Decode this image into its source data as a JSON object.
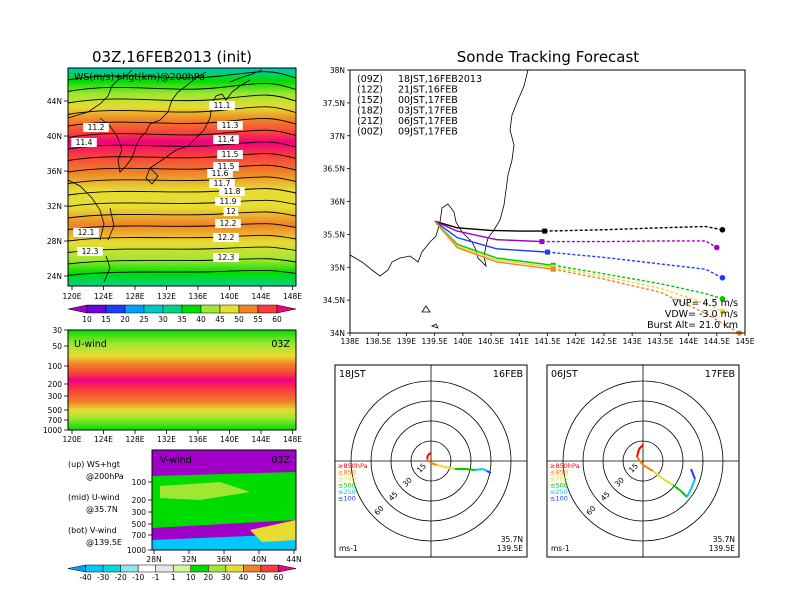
{
  "left_panel": {
    "title": "03Z,16FEB2013 (init)",
    "map_label": "WS(m/s)+hgt(km)@200hPa",
    "x_ticks": [
      "120E",
      "124E",
      "128E",
      "132E",
      "136E",
      "140E",
      "144E",
      "148E"
    ],
    "y_ticks": [
      "44N",
      "40N",
      "36N",
      "32N",
      "28N",
      "24N"
    ],
    "contour_labels": [
      "11.1",
      "11.2",
      "11.3",
      "11.4",
      "11.4",
      "11.5",
      "11.5",
      "11.6",
      "11.7",
      "11.8",
      "11.9",
      "12",
      "12.1",
      "12.2",
      "12.2",
      "12.3",
      "12.3"
    ],
    "ws_colorbar": [
      "10",
      "15",
      "20",
      "25",
      "30",
      "35",
      "40",
      "45",
      "50",
      "55",
      "60"
    ],
    "uwind": {
      "label": "U-wind",
      "time": "03Z",
      "y_ticks": [
        "30",
        "50",
        "100",
        "200",
        "300",
        "500",
        "700",
        "1000"
      ],
      "x_ticks": [
        "120E",
        "124E",
        "128E",
        "132E",
        "136E",
        "140E",
        "144E",
        "148E"
      ]
    },
    "vwind": {
      "label": "V-wind",
      "time": "03Z",
      "y_ticks": [
        "100",
        "200",
        "300",
        "500",
        "700",
        "1000"
      ],
      "x_ticks": [
        "28N",
        "32N",
        "36N",
        "40N",
        "44N"
      ]
    },
    "legend_notes": {
      "up1": "(up) WS+hgt",
      "up2": "@200hPa",
      "mid1": "(mid) U-wind",
      "mid2": "@35.7N",
      "bot1": "(bot) V-wind",
      "bot2": "@139.5E"
    },
    "wind_colorbar": [
      "-40",
      "-30",
      "-20",
      "-10",
      "-1",
      "1",
      "10",
      "20",
      "30",
      "40",
      "50",
      "60"
    ]
  },
  "chart_data": {
    "type": "line",
    "title": "Sonde Tracking Forecast",
    "xlim": [
      138,
      145
    ],
    "ylim": [
      34,
      38
    ],
    "x_ticks": [
      "138E",
      "138.5E",
      "139E",
      "139.5E",
      "140E",
      "140.5E",
      "141E",
      "141.5E",
      "142E",
      "142.5E",
      "143E",
      "143.5E",
      "144E",
      "144.5E",
      "145E"
    ],
    "y_ticks": [
      "38N",
      "37.5N",
      "37N",
      "36.5N",
      "36N",
      "35.5N",
      "35N",
      "34.5N",
      "34N"
    ],
    "launch": [
      139.5,
      35.7
    ],
    "series": [
      {
        "name": "(09Z) 18JST,16FEB2013",
        "color": "#000000",
        "points": [
          [
            139.5,
            35.7
          ],
          [
            139.9,
            35.6
          ],
          [
            140.5,
            35.56
          ],
          [
            141.0,
            35.55
          ],
          [
            141.45,
            35.55
          ],
          [
            142.5,
            35.57
          ],
          [
            143.5,
            35.6
          ],
          [
            144.3,
            35.62
          ],
          [
            144.6,
            35.57
          ]
        ]
      },
      {
        "name": "(12Z) 21JST,16FEB",
        "color": "#a000c8",
        "points": [
          [
            139.5,
            35.7
          ],
          [
            139.9,
            35.55
          ],
          [
            140.6,
            35.42
          ],
          [
            141.4,
            35.39
          ],
          [
            142.5,
            35.39
          ],
          [
            143.5,
            35.4
          ],
          [
            144.3,
            35.4
          ],
          [
            144.5,
            35.3
          ]
        ]
      },
      {
        "name": "(15Z) 00JST,17FEB",
        "color": "#1e3cff",
        "points": [
          [
            139.5,
            35.7
          ],
          [
            139.9,
            35.45
          ],
          [
            140.6,
            35.28
          ],
          [
            141.5,
            35.23
          ],
          [
            142.5,
            35.15
          ],
          [
            143.5,
            35.05
          ],
          [
            144.3,
            34.97
          ],
          [
            144.6,
            34.84
          ]
        ]
      },
      {
        "name": "(18Z) 03JST,17FEB",
        "color": "#00c800",
        "points": [
          [
            139.5,
            35.7
          ],
          [
            139.9,
            35.35
          ],
          [
            140.6,
            35.14
          ],
          [
            141.6,
            35.03
          ],
          [
            142.5,
            34.9
          ],
          [
            143.5,
            34.75
          ],
          [
            144.3,
            34.6
          ],
          [
            144.6,
            34.52
          ]
        ]
      },
      {
        "name": "(21Z) 06JST,17FEB",
        "color": "#e6dc32",
        "points": [
          [
            139.5,
            35.7
          ],
          [
            139.9,
            35.32
          ],
          [
            140.6,
            35.11
          ],
          [
            141.6,
            35.0
          ],
          [
            142.5,
            34.86
          ],
          [
            143.5,
            34.68
          ],
          [
            144.3,
            34.45
          ],
          [
            144.6,
            34.33
          ]
        ]
      },
      {
        "name": "(00Z) 09JST,17FEB",
        "color": "#f08228",
        "points": [
          [
            139.5,
            35.7
          ],
          [
            139.9,
            35.3
          ],
          [
            140.6,
            35.08
          ],
          [
            141.6,
            34.97
          ],
          [
            142.5,
            34.82
          ],
          [
            143.5,
            34.62
          ],
          [
            144.3,
            34.3
          ],
          [
            144.9,
            34.0
          ]
        ]
      }
    ],
    "legend_items": [
      {
        "tag": "(09Z)",
        "text": "18JST,16FEB2013",
        "color": "#000000"
      },
      {
        "tag": "(12Z)",
        "text": "21JST,16FEB",
        "color": "#a000c8"
      },
      {
        "tag": "(15Z)",
        "text": "00JST,17FEB",
        "color": "#1e3cff"
      },
      {
        "tag": "(18Z)",
        "text": "03JST,17FEB",
        "color": "#00c800"
      },
      {
        "tag": "(21Z)",
        "text": "06JST,17FEB",
        "color": "#e6dc32"
      },
      {
        "tag": "(00Z)",
        "text": "09JST,17FEB",
        "color": "#f08228"
      }
    ],
    "params": {
      "vup": "VUP= 4.5 m/s",
      "vdw": "VDW= -3.0 m/s",
      "burst": "Burst Alt= 21.0 km"
    }
  },
  "hodographs": [
    {
      "left_label": "18JST",
      "right_label": "16FEB",
      "ring_labels": [
        "15",
        "30",
        "45",
        "60"
      ],
      "unit": "ms-1",
      "lat": "35.7N",
      "lon": "139.5E",
      "levels": [
        "≥850hPa",
        "≤850",
        "≤700",
        "≤500",
        "≤250",
        "≤100"
      ],
      "level_colors": [
        "#ff0000",
        "#ff7f00",
        "#e6dc32",
        "#00c800",
        "#00c8ff",
        "#1e3cff"
      ]
    },
    {
      "left_label": "06JST",
      "right_label": "17FEB",
      "ring_labels": [
        "15",
        "30",
        "45",
        "60"
      ],
      "unit": "ms-1",
      "lat": "35.7N",
      "lon": "139.5E",
      "levels": [
        "≥850hPa",
        "≤850",
        "≤700",
        "≤500",
        "≤250",
        "≤100"
      ],
      "level_colors": [
        "#ff0000",
        "#ff7f00",
        "#e6dc32",
        "#00c800",
        "#00c8ff",
        "#1e3cff"
      ]
    }
  ],
  "colors": {
    "ws_scale": [
      "#a000c8",
      "#6e00dc",
      "#1e3cff",
      "#00a0ff",
      "#00c8c8",
      "#00d28c",
      "#00dc00",
      "#a0e632",
      "#e6dc32",
      "#f08228",
      "#fa3c3c",
      "#f00082"
    ],
    "wind_scale": [
      "#00a0ff",
      "#00c8ff",
      "#00dcdc",
      "#8ce6f0",
      "#ffffff",
      "#e6e6e6",
      "#d2fa96",
      "#00dc00",
      "#a0e632",
      "#e6dc32",
      "#f08228",
      "#fa3c3c",
      "#f00082"
    ]
  }
}
